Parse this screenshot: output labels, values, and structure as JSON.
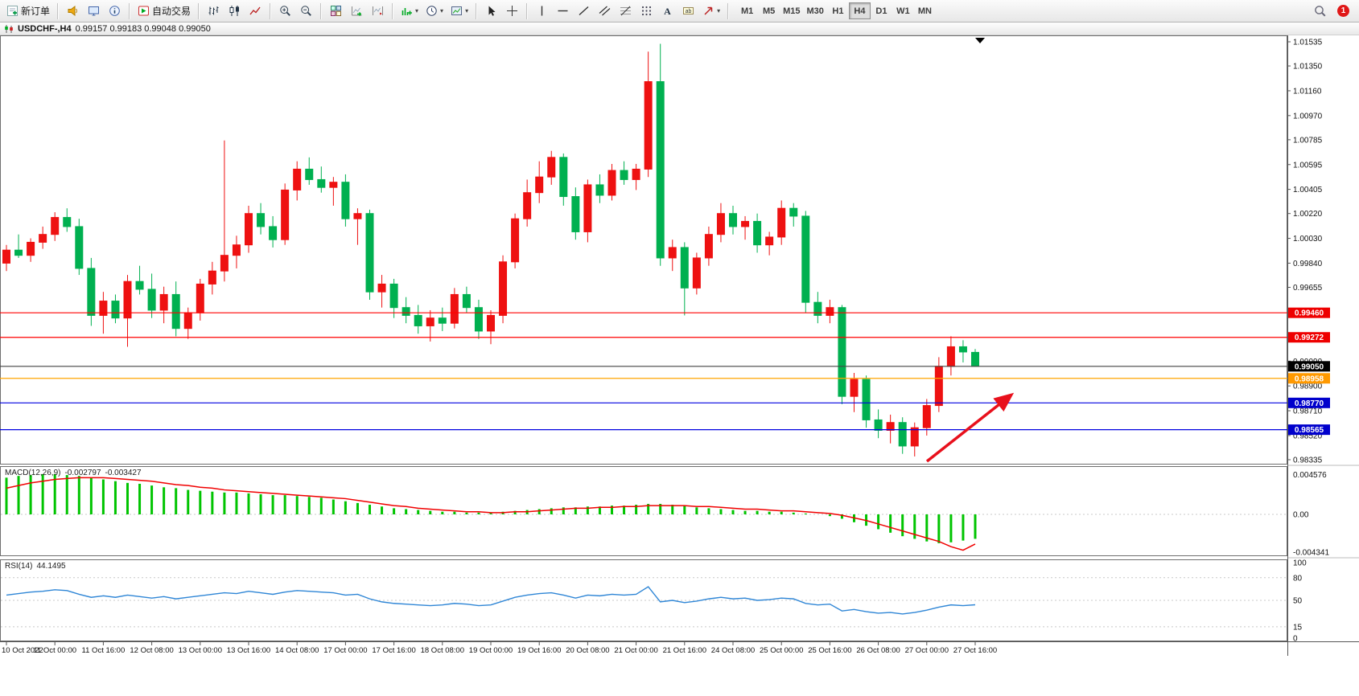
{
  "toolbar": {
    "new_order_label": "新订单",
    "auto_trading_label": "自动交易",
    "timeframes": [
      "M1",
      "M5",
      "M15",
      "M30",
      "H1",
      "H4",
      "D1",
      "W1",
      "MN"
    ],
    "active_timeframe": "H4",
    "notification_count": "1"
  },
  "titlebar": {
    "symbol_period": "USDCHF-,H4",
    "ohlc": "0.99157 0.99183 0.99048 0.99050"
  },
  "chart_data": {
    "type": "candlestick-with-indicators",
    "symbol": "USDCHF-",
    "period": "H4",
    "up_color": "#ee1111",
    "down_color": "#00b050",
    "price_axis_range": [
      0.98335,
      1.01535
    ],
    "price_axis_labels": [
      "1.01535",
      "1.01350",
      "1.01160",
      "1.00970",
      "1.00785",
      "1.00595",
      "1.00405",
      "1.00220",
      "1.00030",
      "0.99840",
      "0.99655",
      "0.99465",
      "0.99275",
      "0.99090",
      "0.98900",
      "0.98710",
      "0.98520",
      "0.98335"
    ],
    "x_axis_labels": [
      "10 Oct 2022",
      "11 Oct 00:00",
      "11 Oct 16:00",
      "12 Oct 08:00",
      "13 Oct 00:00",
      "13 Oct 16:00",
      "14 Oct 08:00",
      "17 Oct 00:00",
      "17 Oct 16:00",
      "18 Oct 08:00",
      "19 Oct 00:00",
      "19 Oct 16:00",
      "20 Oct 08:00",
      "21 Oct 00:00",
      "21 Oct 16:00",
      "24 Oct 08:00",
      "25 Oct 00:00",
      "25 Oct 16:00",
      "26 Oct 08:00",
      "27 Oct 00:00",
      "27 Oct 16:00"
    ],
    "candles_ohlc": [
      [
        0.9984,
        0.9998,
        0.9978,
        0.9994
      ],
      [
        0.9994,
        1.0006,
        0.9988,
        0.999
      ],
      [
        0.999,
        1.0003,
        0.9985,
        1.0
      ],
      [
        1.0,
        1.0012,
        0.9995,
        1.0006
      ],
      [
        1.0006,
        1.0023,
        1.0001,
        1.0019
      ],
      [
        1.0019,
        1.0026,
        1.0008,
        1.0012
      ],
      [
        1.0012,
        1.0018,
        0.9975,
        0.998
      ],
      [
        0.998,
        0.9988,
        0.9936,
        0.9944
      ],
      [
        0.9944,
        0.9962,
        0.993,
        0.9955
      ],
      [
        0.9955,
        0.996,
        0.9938,
        0.9942
      ],
      [
        0.9942,
        0.9975,
        0.992,
        0.997
      ],
      [
        0.997,
        0.9982,
        0.996,
        0.9964
      ],
      [
        0.9964,
        0.9976,
        0.9942,
        0.9948
      ],
      [
        0.9948,
        0.9966,
        0.9938,
        0.996
      ],
      [
        0.996,
        0.997,
        0.9928,
        0.9934
      ],
      [
        0.9934,
        0.995,
        0.9926,
        0.9946
      ],
      [
        0.9946,
        0.9972,
        0.994,
        0.9968
      ],
      [
        0.9968,
        0.9985,
        0.996,
        0.9978
      ],
      [
        0.9978,
        1.0078,
        0.997,
        0.999
      ],
      [
        0.999,
        1.0005,
        0.998,
        0.9998
      ],
      [
        0.9998,
        1.0028,
        0.9992,
        1.0022
      ],
      [
        1.0022,
        1.003,
        1.0006,
        1.0012
      ],
      [
        1.0012,
        1.002,
        0.9996,
        1.0002
      ],
      [
        1.0002,
        1.0045,
        0.9998,
        1.004
      ],
      [
        1.004,
        1.0062,
        1.0032,
        1.0056
      ],
      [
        1.0056,
        1.0065,
        1.0044,
        1.0048
      ],
      [
        1.0048,
        1.0058,
        1.0038,
        1.0042
      ],
      [
        1.0042,
        1.005,
        1.0028,
        1.0046
      ],
      [
        1.0046,
        1.0052,
        1.0012,
        1.0018
      ],
      [
        1.0018,
        1.0026,
        0.9998,
        1.0022
      ],
      [
        1.0022,
        1.0025,
        0.9956,
        0.9962
      ],
      [
        0.9962,
        0.9975,
        0.995,
        0.9968
      ],
      [
        0.9968,
        0.9972,
        0.9942,
        0.995
      ],
      [
        0.995,
        0.9958,
        0.9938,
        0.9944
      ],
      [
        0.9944,
        0.9952,
        0.993,
        0.9936
      ],
      [
        0.9936,
        0.9948,
        0.9924,
        0.9942
      ],
      [
        0.9942,
        0.995,
        0.9932,
        0.9938
      ],
      [
        0.9938,
        0.9965,
        0.9934,
        0.996
      ],
      [
        0.996,
        0.9966,
        0.9946,
        0.995
      ],
      [
        0.995,
        0.9956,
        0.9926,
        0.9932
      ],
      [
        0.9932,
        0.9948,
        0.9922,
        0.9944
      ],
      [
        0.9944,
        0.999,
        0.9938,
        0.9985
      ],
      [
        0.9985,
        1.0022,
        0.998,
        1.0018
      ],
      [
        1.0018,
        1.0048,
        1.0012,
        1.0038
      ],
      [
        1.0038,
        1.0062,
        1.003,
        1.005
      ],
      [
        1.005,
        1.007,
        1.0044,
        1.0065
      ],
      [
        1.0065,
        1.0068,
        1.0028,
        1.0035
      ],
      [
        1.0035,
        1.0042,
        1.0002,
        1.0008
      ],
      [
        1.0008,
        1.0048,
        1.0,
        1.0044
      ],
      [
        1.0044,
        1.0052,
        1.003,
        1.0036
      ],
      [
        1.0036,
        1.006,
        1.0032,
        1.0055
      ],
      [
        1.0055,
        1.0062,
        1.0044,
        1.0048
      ],
      [
        1.0048,
        1.006,
        1.004,
        1.0056
      ],
      [
        1.0056,
        1.0146,
        1.005,
        1.0123
      ],
      [
        1.0123,
        1.0152,
        0.9982,
        0.9988
      ],
      [
        0.9988,
        1.0002,
        0.9978,
        0.9996
      ],
      [
        0.9996,
        1.0,
        0.9944,
        0.9965
      ],
      [
        0.9965,
        0.9992,
        0.996,
        0.9988
      ],
      [
        0.9988,
        1.0012,
        0.9982,
        1.0006
      ],
      [
        1.0006,
        1.003,
        1.0,
        1.0022
      ],
      [
        1.0022,
        1.0028,
        1.0006,
        1.0012
      ],
      [
        1.0012,
        1.002,
        1.0002,
        1.0016
      ],
      [
        1.0016,
        1.0022,
        0.9992,
        0.9998
      ],
      [
        0.9998,
        1.0008,
        0.999,
        1.0004
      ],
      [
        1.0004,
        1.0032,
        0.9998,
        1.0026
      ],
      [
        1.0026,
        1.003,
        1.0012,
        1.002
      ],
      [
        1.002,
        1.0024,
        0.9946,
        0.9954
      ],
      [
        0.9954,
        0.9962,
        0.9938,
        0.9944
      ],
      [
        0.9944,
        0.9956,
        0.9938,
        0.995
      ],
      [
        0.995,
        0.9952,
        0.9876,
        0.9882
      ],
      [
        0.9882,
        0.99,
        0.987,
        0.9895
      ],
      [
        0.9895,
        0.9898,
        0.9858,
        0.9864
      ],
      [
        0.9864,
        0.9872,
        0.985,
        0.9856
      ],
      [
        0.9856,
        0.9868,
        0.9846,
        0.9862
      ],
      [
        0.9862,
        0.9866,
        0.9838,
        0.9844
      ],
      [
        0.9844,
        0.9862,
        0.9836,
        0.9858
      ],
      [
        0.9858,
        0.988,
        0.9852,
        0.9875
      ],
      [
        0.9875,
        0.9912,
        0.987,
        0.9905
      ],
      [
        0.9905,
        0.9928,
        0.9898,
        0.992
      ],
      [
        0.992,
        0.9925,
        0.9908,
        0.9916
      ],
      [
        0.99157,
        0.99183,
        0.99048,
        0.9905
      ]
    ],
    "hlines": [
      {
        "price": 0.9946,
        "label": "0.99460",
        "color": "#ff0000",
        "tag_bg": "#ee0000"
      },
      {
        "price": 0.99272,
        "label": "0.99272",
        "color": "#ff0000",
        "tag_bg": "#ee0000"
      },
      {
        "price": 0.9905,
        "label": "0.99050",
        "color": "#444444",
        "tag_bg": "#000000",
        "role": "bid"
      },
      {
        "price": 0.98958,
        "label": "0.98958",
        "color": "#ffa500",
        "tag_bg": "#ff9900"
      },
      {
        "price": 0.9877,
        "label": "0.98770",
        "color": "#0000e0",
        "tag_bg": "#0000cc"
      },
      {
        "price": 0.98565,
        "label": "0.98565",
        "color": "#0000e0",
        "tag_bg": "#0000cc"
      }
    ],
    "macd": {
      "label": "MACD(12,26,9)",
      "main_value": "-0.002797",
      "signal_value": "-0.003427",
      "axis_labels": [
        "0.004576",
        "0.00",
        "-0.004341"
      ],
      "histogram_color": "#00c400",
      "signal_color": "#f00000",
      "histogram": [
        0.0042,
        0.0044,
        0.0045,
        0.0046,
        0.0046,
        0.0045,
        0.0044,
        0.0042,
        0.004,
        0.0038,
        0.0036,
        0.0035,
        0.0033,
        0.0031,
        0.003,
        0.0028,
        0.0027,
        0.0026,
        0.0025,
        0.0025,
        0.0024,
        0.0023,
        0.0022,
        0.0022,
        0.0021,
        0.002,
        0.0019,
        0.0017,
        0.0015,
        0.0013,
        0.0011,
        0.0009,
        0.0007,
        0.0006,
        0.0005,
        0.0004,
        0.0003,
        0.0003,
        0.0002,
        0.0002,
        0.0002,
        0.0003,
        0.0004,
        0.0005,
        0.0006,
        0.0007,
        0.0008,
        0.0008,
        0.0009,
        0.0009,
        0.001,
        0.001,
        0.0011,
        0.0012,
        0.0012,
        0.0011,
        0.001,
        0.0008,
        0.0007,
        0.0006,
        0.0005,
        0.0004,
        0.0004,
        0.0003,
        0.0003,
        0.0002,
        0.0001,
        0.0,
        -0.0002,
        -0.0005,
        -0.0009,
        -0.0013,
        -0.0017,
        -0.0021,
        -0.0025,
        -0.0028,
        -0.0031,
        -0.0033,
        -0.0032,
        -0.003,
        -0.0028
      ],
      "signal": [
        0.003,
        0.0033,
        0.0036,
        0.0038,
        0.004,
        0.0041,
        0.0042,
        0.0042,
        0.0042,
        0.0041,
        0.004,
        0.0039,
        0.0038,
        0.0036,
        0.0034,
        0.0033,
        0.0031,
        0.003,
        0.0028,
        0.0027,
        0.0026,
        0.0025,
        0.0024,
        0.0023,
        0.0022,
        0.0021,
        0.002,
        0.0019,
        0.0018,
        0.0016,
        0.0014,
        0.0012,
        0.001,
        0.0009,
        0.0007,
        0.0006,
        0.0005,
        0.0004,
        0.0003,
        0.0003,
        0.0002,
        0.0002,
        0.0003,
        0.0003,
        0.0004,
        0.0005,
        0.0006,
        0.0007,
        0.0007,
        0.0008,
        0.0008,
        0.0009,
        0.0009,
        0.001,
        0.001,
        0.001,
        0.001,
        0.0009,
        0.0009,
        0.0008,
        0.0007,
        0.0006,
        0.0006,
        0.0005,
        0.0004,
        0.0004,
        0.0003,
        0.0002,
        0.0001,
        -0.0001,
        -0.0004,
        -0.0007,
        -0.0011,
        -0.0015,
        -0.0019,
        -0.0023,
        -0.0027,
        -0.0031,
        -0.0037,
        -0.0041,
        -0.0034
      ]
    },
    "rsi": {
      "label": "RSI(14)",
      "value": "44.1495",
      "axis_labels": [
        "100",
        "80",
        "50",
        "15",
        "0"
      ],
      "levels": [
        80,
        50,
        15
      ],
      "line_color": "#2f86d6",
      "values": [
        57,
        59,
        61,
        62,
        64,
        63,
        58,
        54,
        56,
        54,
        57,
        55,
        53,
        55,
        52,
        54,
        56,
        58,
        60,
        59,
        62,
        60,
        58,
        61,
        63,
        62,
        61,
        60,
        57,
        58,
        52,
        48,
        46,
        45,
        44,
        43,
        44,
        46,
        45,
        43,
        44,
        49,
        54,
        57,
        59,
        60,
        57,
        53,
        57,
        56,
        58,
        57,
        58,
        68,
        48,
        50,
        47,
        49,
        52,
        54,
        52,
        53,
        50,
        51,
        53,
        52,
        46,
        44,
        45,
        36,
        38,
        35,
        33,
        34,
        32,
        34,
        37,
        41,
        44,
        43,
        44.15
      ]
    },
    "annotation_arrow": {
      "color": "#e8101c"
    }
  }
}
